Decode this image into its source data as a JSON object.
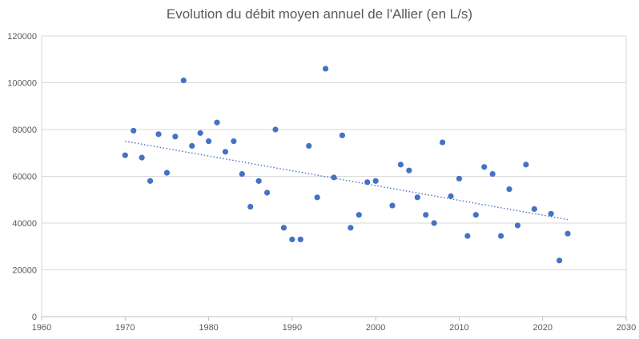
{
  "chart_data": {
    "type": "scatter",
    "title": "Evolution du débit moyen annuel de l'Allier (en L/s)",
    "xlabel": "",
    "ylabel": "",
    "xlim": [
      1960,
      2030
    ],
    "ylim": [
      0,
      120000
    ],
    "x_ticks": [
      1960,
      1970,
      1980,
      1990,
      2000,
      2010,
      2020,
      2030
    ],
    "y_ticks": [
      0,
      20000,
      40000,
      60000,
      80000,
      100000,
      120000
    ],
    "grid": "horizontal",
    "legend": "none",
    "marker_color": "#4472c4",
    "trendline": {
      "type": "linear",
      "style": "dotted",
      "color": "#4472c4",
      "x": [
        1970,
        2023
      ],
      "y": [
        75000,
        41500
      ]
    },
    "series": [
      {
        "points": [
          [
            1970,
            69000
          ],
          [
            1971,
            79500
          ],
          [
            1972,
            68000
          ],
          [
            1973,
            58000
          ],
          [
            1974,
            78000
          ],
          [
            1975,
            61500
          ],
          [
            1976,
            77000
          ],
          [
            1977,
            101000
          ],
          [
            1978,
            73000
          ],
          [
            1979,
            78500
          ],
          [
            1980,
            75000
          ],
          [
            1981,
            83000
          ],
          [
            1982,
            70500
          ],
          [
            1983,
            75000
          ],
          [
            1984,
            61000
          ],
          [
            1985,
            47000
          ],
          [
            1986,
            58000
          ],
          [
            1987,
            53000
          ],
          [
            1988,
            80000
          ],
          [
            1989,
            38000
          ],
          [
            1990,
            33000
          ],
          [
            1991,
            33000
          ],
          [
            1992,
            73000
          ],
          [
            1993,
            51000
          ],
          [
            1994,
            106000
          ],
          [
            1995,
            59500
          ],
          [
            1996,
            77500
          ],
          [
            1997,
            38000
          ],
          [
            1998,
            43500
          ],
          [
            1999,
            57500
          ],
          [
            2000,
            58000
          ],
          [
            2002,
            47500
          ],
          [
            2003,
            65000
          ],
          [
            2004,
            62500
          ],
          [
            2005,
            51000
          ],
          [
            2006,
            43500
          ],
          [
            2007,
            40000
          ],
          [
            2008,
            74500
          ],
          [
            2009,
            51500
          ],
          [
            2010,
            59000
          ],
          [
            2011,
            34500
          ],
          [
            2012,
            43500
          ],
          [
            2013,
            64000
          ],
          [
            2014,
            61000
          ],
          [
            2015,
            34500
          ],
          [
            2016,
            54500
          ],
          [
            2017,
            39000
          ],
          [
            2018,
            65000
          ],
          [
            2019,
            46000
          ],
          [
            2021,
            44000
          ],
          [
            2022,
            24000
          ],
          [
            2023,
            35500
          ]
        ]
      }
    ]
  }
}
